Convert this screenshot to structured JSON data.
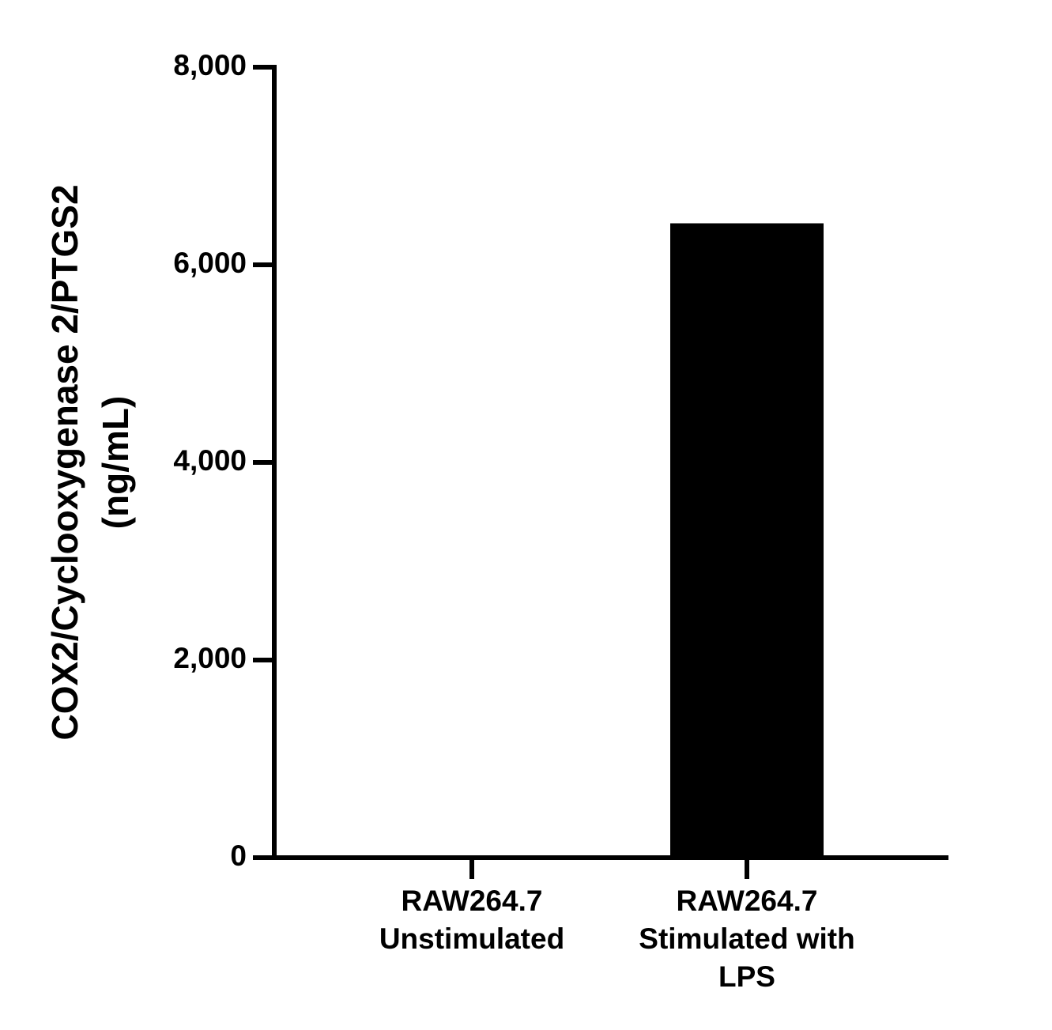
{
  "chart_data": {
    "type": "bar",
    "ylabel": [
      "COX2/Cyclooxygenase 2/PTGS2",
      "(ng/mL)"
    ],
    "categories": [
      [
        "RAW264.7",
        "Unstimulated"
      ],
      [
        "RAW264.7",
        "Stimulated with",
        "LPS"
      ]
    ],
    "values": [
      0,
      6420
    ],
    "color": "#000000",
    "ylim": [
      0,
      8000
    ],
    "yticks": [
      0,
      {
        "value": 2000,
        "label": "2,000"
      },
      {
        "value": 4000,
        "label": "4,000"
      },
      {
        "value": 6000,
        "label": "6,000"
      },
      {
        "value": 8000,
        "label": "8,000"
      }
    ]
  }
}
